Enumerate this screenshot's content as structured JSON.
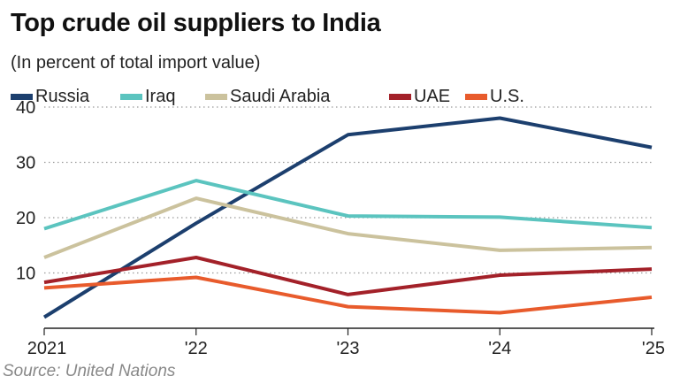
{
  "colors": {
    "Russia": "#1c3f6e",
    "Iraq": "#5bc4bf",
    "Saudi Arabia": "#cbc29d",
    "UAE": "#a32129",
    "U.S.": "#e85b2c",
    "grid": "#9a9a9a",
    "axis": "#222222"
  },
  "chart_data": {
    "type": "line",
    "title": "Top crude oil suppliers to India",
    "subtitle": "(In percent of total import value)",
    "source": "Source: United Nations",
    "x": [
      "2021",
      "'22",
      "'23",
      "'24",
      "'25"
    ],
    "ylim": [
      0,
      40
    ],
    "yticks": [
      "10",
      "20",
      "30",
      "40"
    ],
    "grid": "horizontal dotted",
    "legend": "top",
    "series": [
      {
        "name": "Russia",
        "values": [
          2,
          19,
          35,
          38,
          32.7
        ]
      },
      {
        "name": "Iraq",
        "values": [
          18,
          26.7,
          20.3,
          20.1,
          18.2
        ]
      },
      {
        "name": "Saudi Arabia",
        "values": [
          12.8,
          23.5,
          17.1,
          14.1,
          14.6
        ]
      },
      {
        "name": "UAE",
        "values": [
          8.3,
          12.8,
          6.1,
          9.6,
          10.7
        ]
      },
      {
        "name": "U.S.",
        "values": [
          7.3,
          9.2,
          3.9,
          2.8,
          5.6
        ]
      }
    ]
  }
}
